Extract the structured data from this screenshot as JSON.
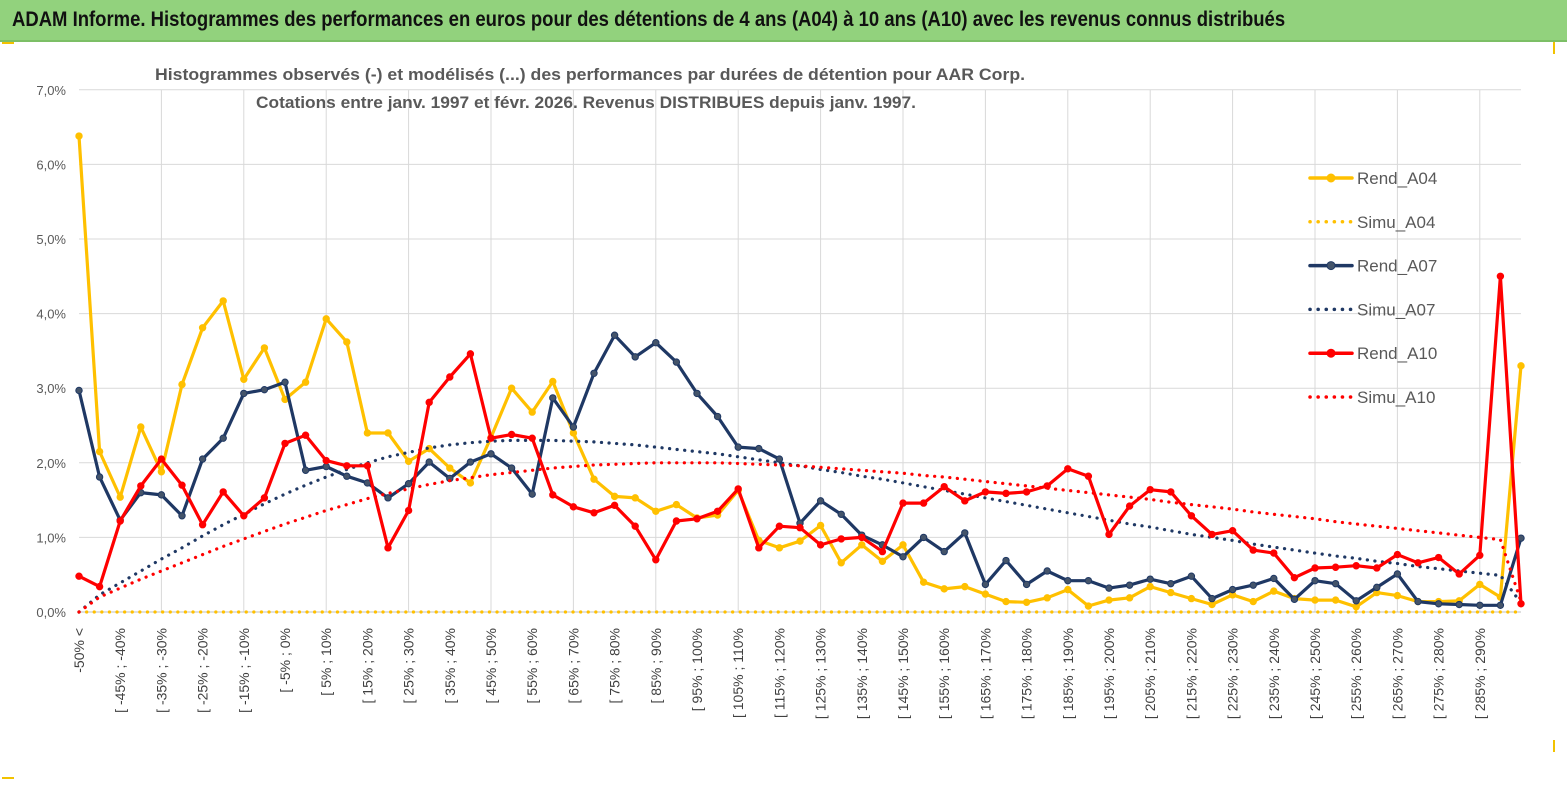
{
  "banner": {
    "title": "ADAM Informe. Histogrammes des performances en euros pour des détentions de 4 ans (A04) à 10 ans (A10) avec les revenus connus distribués"
  },
  "colors": {
    "banner_bg": "#92d27d",
    "a04": "#ffc000",
    "a07": "#1f3864",
    "a10": "#ff0000",
    "grid": "#d9d9d9",
    "axis_text": "#595959"
  },
  "chart_data": {
    "type": "line",
    "title": "Histogrammes observés (-) et modélisés (...) des performances par durées de détention pour AAR Corp.",
    "subtitle": "Cotations entre janv. 1997 et févr. 2026. Revenus DISTRIBUES depuis janv. 1997.",
    "xlabel": "",
    "ylabel": "",
    "ylim": [
      0,
      7
    ],
    "y_ticks": [
      "0,0%",
      "1,0%",
      "2,0%",
      "3,0%",
      "4,0%",
      "5,0%",
      "6,0%",
      "7,0%"
    ],
    "legend_position": "right",
    "x_tick_labels": [
      "-50% <",
      "[ -45% ; -40%",
      "[ -35% ; -30%",
      "[ -25% ; -20%",
      "[ -15% ; -10%",
      "[ -5% ; 0%",
      "[ 5% ; 10%",
      "[ 15% ; 20%",
      "[ 25% ; 30%",
      "[ 35% ; 40%",
      "[ 45% ; 50%",
      "[ 55% ; 60%",
      "[ 65% ; 70%",
      "[ 75% ; 80%",
      "[ 85% ; 90%",
      "[ 95% ; 100%",
      "[ 105% ; 110%",
      "[ 115% ; 120%",
      "[ 125% ; 130%",
      "[ 135% ; 140%",
      "[ 145% ; 150%",
      "[ 155% ; 160%",
      "[ 165% ; 170%",
      "[ 175% ; 180%",
      "[ 185% ; 190%",
      "[ 195% ; 200%",
      "[ 205% ; 210%",
      "[ 215% ; 220%",
      "[ 225% ; 230%",
      "[ 235% ; 240%",
      "[ 245% ; 250%",
      "[ 255% ; 260%",
      "[ 265% ; 270%",
      "[ 275% ; 280%",
      "[ 285% ; 290%"
    ],
    "series": [
      {
        "name": "Rend_A04",
        "style": "solid",
        "color": "#ffc000",
        "values": [
          6.38,
          2.15,
          1.54,
          2.48,
          1.88,
          3.05,
          3.81,
          4.17,
          3.12,
          3.54,
          2.85,
          3.08,
          3.93,
          3.62,
          2.4,
          2.4,
          2.02,
          2.19,
          1.93,
          1.73,
          2.34,
          3.0,
          2.68,
          3.09,
          2.4,
          1.78,
          1.55,
          1.53,
          1.35,
          1.44,
          1.26,
          1.3,
          1.63,
          0.96,
          0.86,
          0.95,
          1.16,
          0.66,
          0.9,
          0.68,
          0.9,
          0.4,
          0.31,
          0.34,
          0.24,
          0.14,
          0.13,
          0.19,
          0.3,
          0.08,
          0.16,
          0.19,
          0.34,
          0.26,
          0.18,
          0.1,
          0.23,
          0.14,
          0.28,
          0.18,
          0.16,
          0.16,
          0.07,
          0.26,
          0.22,
          0.14,
          0.14,
          0.15,
          0.37,
          0.2,
          3.3
        ]
      },
      {
        "name": "Simu_A04",
        "style": "dotted",
        "color": "#ffc000",
        "values": [
          0,
          0,
          0,
          0,
          0,
          0,
          0,
          0,
          0,
          0,
          0,
          0,
          0,
          0,
          0,
          0,
          0,
          0,
          0,
          0,
          0,
          0,
          0,
          0,
          0,
          0,
          0,
          0,
          0,
          0,
          0,
          0,
          0,
          0,
          0,
          0,
          0,
          0,
          0,
          0,
          0,
          0,
          0,
          0,
          0,
          0,
          0,
          0,
          0,
          0,
          0,
          0,
          0,
          0,
          0,
          0,
          0,
          0,
          0,
          0,
          0,
          0,
          0,
          0,
          0,
          0,
          0,
          0,
          0,
          0,
          0
        ]
      },
      {
        "name": "Rend_A07",
        "style": "solid",
        "color": "#1f3864",
        "values": [
          2.97,
          1.81,
          1.23,
          1.6,
          1.57,
          1.29,
          2.05,
          2.33,
          2.93,
          2.98,
          3.08,
          1.9,
          1.95,
          1.82,
          1.73,
          1.53,
          1.72,
          2.01,
          1.79,
          2.01,
          2.12,
          1.93,
          1.58,
          2.87,
          2.48,
          3.2,
          3.71,
          3.42,
          3.61,
          3.35,
          2.93,
          2.62,
          2.21,
          2.19,
          2.05,
          1.19,
          1.49,
          1.31,
          1.03,
          0.9,
          0.74,
          1.0,
          0.81,
          1.06,
          0.37,
          0.69,
          0.37,
          0.55,
          0.42,
          0.42,
          0.32,
          0.36,
          0.44,
          0.38,
          0.48,
          0.18,
          0.3,
          0.36,
          0.45,
          0.17,
          0.42,
          0.38,
          0.15,
          0.33,
          0.51,
          0.14,
          0.11,
          0.1,
          0.09,
          0.09,
          0.99
        ]
      },
      {
        "name": "Simu_A07",
        "style": "dotted",
        "color": "#1f3864",
        "values": [
          0.0,
          0.23,
          0.39,
          0.55,
          0.71,
          0.86,
          1.02,
          1.17,
          1.31,
          1.45,
          1.58,
          1.7,
          1.81,
          1.91,
          2.0,
          2.08,
          2.14,
          2.2,
          2.24,
          2.27,
          2.29,
          2.3,
          2.3,
          2.3,
          2.29,
          2.28,
          2.26,
          2.24,
          2.21,
          2.18,
          2.15,
          2.12,
          2.08,
          2.04,
          2.0,
          1.96,
          1.91,
          1.87,
          1.82,
          1.78,
          1.73,
          1.68,
          1.63,
          1.58,
          1.53,
          1.48,
          1.43,
          1.38,
          1.33,
          1.28,
          1.23,
          1.18,
          1.14,
          1.09,
          1.04,
          1.0,
          0.96,
          0.91,
          0.87,
          0.83,
          0.79,
          0.75,
          0.72,
          0.68,
          0.65,
          0.61,
          0.58,
          0.55,
          0.52,
          0.49,
          0.12
        ]
      },
      {
        "name": "Rend_A10",
        "style": "solid",
        "color": "#ff0000",
        "values": [
          0.48,
          0.34,
          1.22,
          1.69,
          2.05,
          1.7,
          1.17,
          1.61,
          1.29,
          1.53,
          2.26,
          2.37,
          2.03,
          1.96,
          1.96,
          0.86,
          1.36,
          2.81,
          3.15,
          3.46,
          2.33,
          2.38,
          2.33,
          1.57,
          1.41,
          1.33,
          1.43,
          1.15,
          0.7,
          1.22,
          1.25,
          1.35,
          1.65,
          0.86,
          1.15,
          1.13,
          0.9,
          0.98,
          1.0,
          0.81,
          1.46,
          1.46,
          1.68,
          1.49,
          1.61,
          1.59,
          1.61,
          1.69,
          1.92,
          1.82,
          1.04,
          1.42,
          1.64,
          1.61,
          1.29,
          1.04,
          1.09,
          0.83,
          0.79,
          0.46,
          0.59,
          0.6,
          0.62,
          0.59,
          0.77,
          0.66,
          0.73,
          0.51,
          0.76,
          4.5,
          0.11
        ]
      },
      {
        "name": "Simu_A10",
        "style": "dotted",
        "color": "#ff0000",
        "values": [
          0.0,
          0.2,
          0.32,
          0.44,
          0.55,
          0.66,
          0.77,
          0.88,
          0.98,
          1.08,
          1.18,
          1.27,
          1.36,
          1.44,
          1.52,
          1.59,
          1.65,
          1.71,
          1.76,
          1.8,
          1.84,
          1.87,
          1.9,
          1.93,
          1.95,
          1.97,
          1.98,
          1.99,
          2.0,
          2.0,
          2.0,
          2.0,
          1.99,
          1.98,
          1.97,
          1.96,
          1.94,
          1.92,
          1.9,
          1.88,
          1.86,
          1.83,
          1.81,
          1.78,
          1.75,
          1.72,
          1.69,
          1.66,
          1.63,
          1.6,
          1.57,
          1.54,
          1.51,
          1.47,
          1.44,
          1.41,
          1.38,
          1.34,
          1.31,
          1.28,
          1.25,
          1.21,
          1.18,
          1.15,
          1.12,
          1.09,
          1.06,
          1.03,
          1.0,
          0.97,
          0.14
        ]
      }
    ]
  }
}
